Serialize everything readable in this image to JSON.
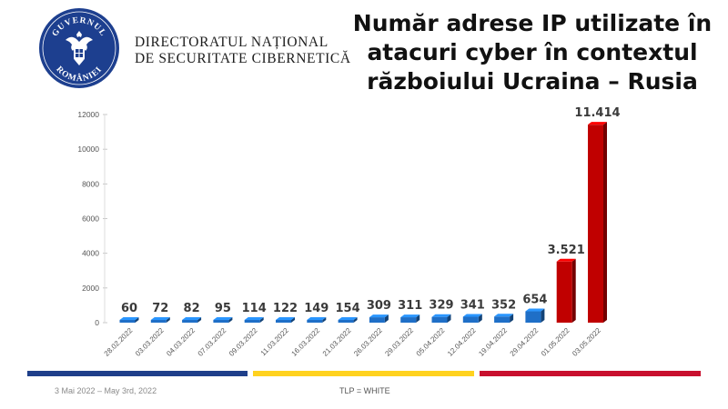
{
  "header": {
    "org_line1": "DIRECTORATUL NAȚIONAL",
    "org_line2": "DE SECURITATE CIBERNETICĂ",
    "seal_text_top": "GUVERNUL",
    "seal_text_bottom": "ROMÂNIEI"
  },
  "footer": {
    "date_text": "3 Mai 2022 – May 3rd, 2022",
    "tlp_text": "TLP = WHITE"
  },
  "colors": {
    "blue_bar": "#1f6fc7",
    "red_bar": "#c00000",
    "flag_blue": "#1f3f8a",
    "flag_yellow": "#ffd21f",
    "flag_red": "#c8102e"
  },
  "chart_data": {
    "type": "bar",
    "title_lines": [
      "Număr adrese IP utilizate în",
      "atacuri cyber în contextul",
      "războiului Ucraina – Rusia"
    ],
    "categories": [
      "28.02.2022",
      "03.03.2022",
      "04.03.2022",
      "07.03.2022",
      "09.03.2022",
      "11.03.2022",
      "16.03.2022",
      "21.03.2022",
      "26.03.2022",
      "29.03.2022",
      "05.04.2022",
      "12.04.2022",
      "19.04.2022",
      "29.04.2022",
      "01.05.2022",
      "03.05.2022"
    ],
    "values": [
      60,
      72,
      82,
      95,
      114,
      122,
      149,
      154,
      309,
      311,
      329,
      341,
      352,
      654,
      3521,
      11414
    ],
    "value_labels": [
      "60",
      "72",
      "82",
      "95",
      "114",
      "122",
      "149",
      "154",
      "309",
      "311",
      "329",
      "341",
      "352",
      "654",
      "3.521",
      "11.414"
    ],
    "highlight": [
      false,
      false,
      false,
      false,
      false,
      false,
      false,
      false,
      false,
      false,
      false,
      false,
      false,
      false,
      true,
      true
    ],
    "ylim": [
      0,
      12000
    ],
    "yticks": [
      0,
      2000,
      4000,
      6000,
      8000,
      10000,
      12000
    ],
    "xlabel": "",
    "ylabel": "",
    "grid": false
  }
}
